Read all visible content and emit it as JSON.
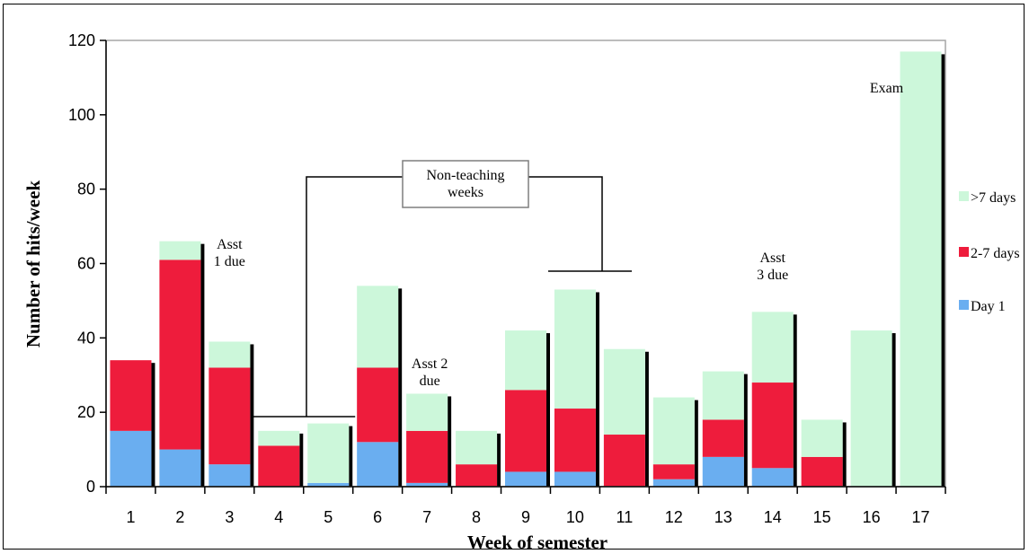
{
  "chart_data": {
    "type": "bar",
    "stacked": true,
    "xlabel": "Week of semester",
    "ylabel": "Number of hits/week",
    "ylim": [
      0,
      120
    ],
    "yticks": [
      0,
      20,
      40,
      60,
      80,
      100,
      120
    ],
    "categories": [
      "1",
      "2",
      "3",
      "4",
      "5",
      "6",
      "7",
      "8",
      "9",
      "10",
      "11",
      "12",
      "13",
      "14",
      "15",
      "16",
      "17"
    ],
    "series": [
      {
        "name": "Day 1",
        "color": "#6AAEF0",
        "values": [
          15,
          10,
          6,
          0,
          1,
          12,
          1,
          0,
          4,
          4,
          0,
          2,
          8,
          5,
          0,
          0,
          0
        ]
      },
      {
        "name": "2-7 days",
        "color": "#EE1C3C",
        "values": [
          19,
          51,
          26,
          11,
          0,
          20,
          14,
          6,
          22,
          17,
          14,
          4,
          10,
          23,
          8,
          0,
          0
        ]
      },
      {
        "name": ">7 days",
        "color": "#CCF7DA",
        "values": [
          0,
          5,
          7,
          4,
          16,
          22,
          10,
          9,
          16,
          32,
          23,
          18,
          13,
          19,
          10,
          42,
          117
        ]
      }
    ],
    "legend_position": "right",
    "grid": false,
    "annotations": [
      {
        "week": 3,
        "lines": [
          "Asst",
          "1 due"
        ]
      },
      {
        "week": 7,
        "lines": [
          "Asst 2",
          "due"
        ]
      },
      {
        "week": 14,
        "lines": [
          "Asst",
          "3 due"
        ]
      },
      {
        "week": 17,
        "lines": [
          "Exam"
        ]
      }
    ],
    "callout": {
      "lines": [
        "Non-teaching",
        "weeks"
      ],
      "weeks": [
        [
          4,
          5
        ],
        [
          10,
          11
        ]
      ]
    }
  }
}
